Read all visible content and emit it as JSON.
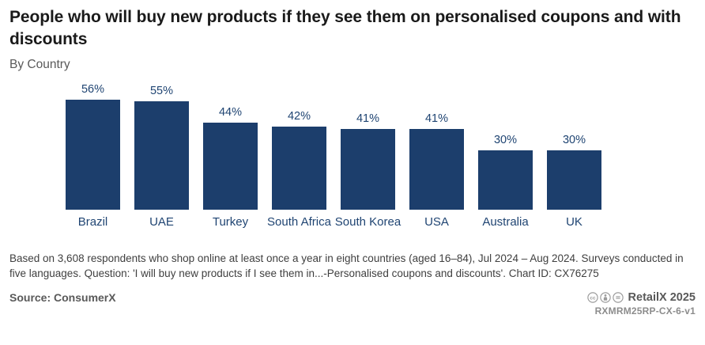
{
  "title": "People who will buy new products if they see them on personalised coupons and with discounts",
  "subtitle": "By Country",
  "chart_data": {
    "type": "bar",
    "categories": [
      "Brazil",
      "UAE",
      "Turkey",
      "South Africa",
      "South Korea",
      "USA",
      "Australia",
      "UK"
    ],
    "values": [
      56,
      55,
      44,
      42,
      41,
      41,
      30,
      30
    ],
    "value_labels": [
      "56%",
      "55%",
      "44%",
      "42%",
      "41%",
      "41%",
      "30%",
      "30%"
    ],
    "title": "People who will buy new products if they see them on personalised coupons and with discounts",
    "xlabel": "",
    "ylabel": "",
    "ylim": [
      0,
      60
    ],
    "grid": false,
    "legend": false,
    "bar_color": "#1c3e6c",
    "label_color": "#1f4472"
  },
  "footnote": "Based on 3,608 respondents who shop online at least once a year in eight countries (aged 16–84), Jul 2024 – Aug 2024. Surveys conducted in five languages. Question: 'I will buy new products if I see them in...-Personalised coupons and discounts'. Chart ID: CX76275",
  "footer": {
    "source_label": "Source: ConsumerX",
    "brand": "RetailX 2025",
    "reference_code": "RXMRM25RP-CX-6-v1",
    "license_icons": [
      "cc-icon",
      "cc-by-icon",
      "cc-nd-icon"
    ],
    "icon_color": "#9b9b9b"
  }
}
